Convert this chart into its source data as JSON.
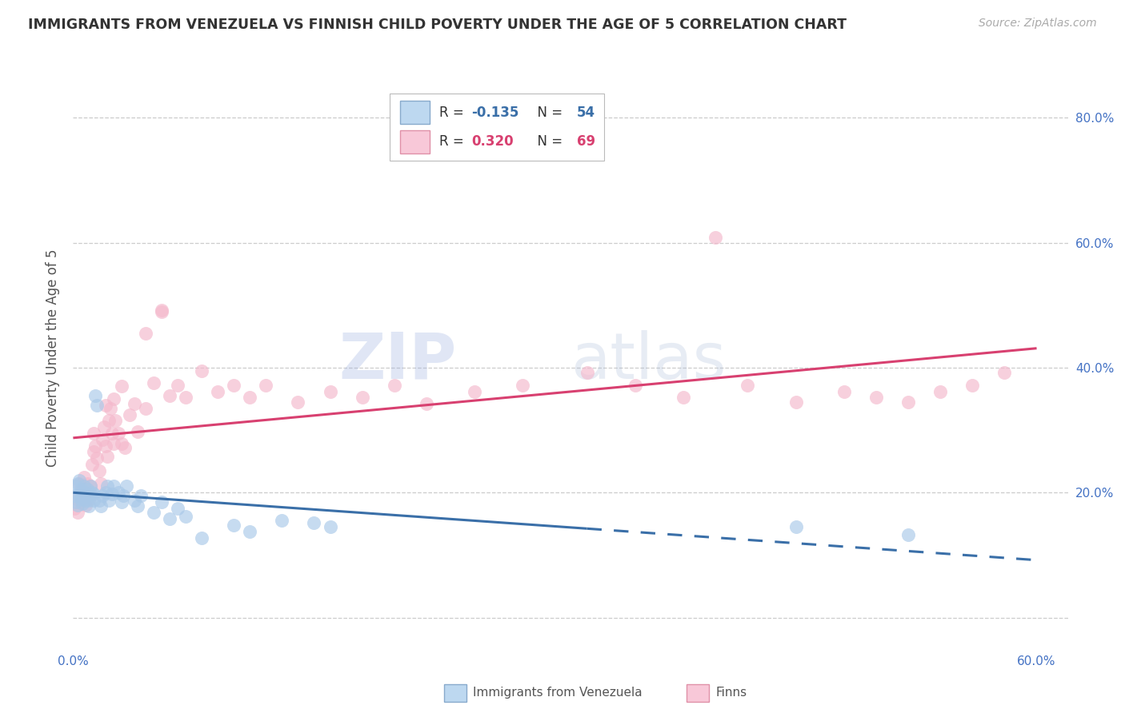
{
  "title": "IMMIGRANTS FROM VENEZUELA VS FINNISH CHILD POVERTY UNDER THE AGE OF 5 CORRELATION CHART",
  "source": "Source: ZipAtlas.com",
  "ylabel": "Child Poverty Under the Age of 5",
  "xlim": [
    0.0,
    0.62
  ],
  "ylim": [
    -0.05,
    0.88
  ],
  "y_ticks": [
    0.0,
    0.2,
    0.4,
    0.6,
    0.8
  ],
  "y_tick_labels": [
    "",
    "20.0%",
    "40.0%",
    "60.0%",
    "80.0%"
  ],
  "x_left_label": "0.0%",
  "x_right_label": "60.0%",
  "color_blue": "#A8C8E8",
  "color_blue_line": "#3A6FA8",
  "color_pink": "#F4B8CC",
  "color_pink_line": "#D84070",
  "watermark_zip_color": "#B8CCE0",
  "watermark_atlas_color": "#C8D8E8",
  "series1_x": [
    0.001,
    0.002,
    0.002,
    0.003,
    0.003,
    0.004,
    0.004,
    0.005,
    0.005,
    0.006,
    0.006,
    0.007,
    0.007,
    0.008,
    0.008,
    0.009,
    0.009,
    0.01,
    0.01,
    0.011,
    0.011,
    0.012,
    0.013,
    0.013,
    0.014,
    0.015,
    0.016,
    0.017,
    0.018,
    0.02,
    0.021,
    0.022,
    0.024,
    0.025,
    0.028,
    0.03,
    0.031,
    0.033,
    0.038,
    0.04,
    0.042,
    0.05,
    0.055,
    0.06,
    0.065,
    0.07,
    0.08,
    0.1,
    0.11,
    0.13,
    0.15,
    0.16,
    0.45,
    0.52
  ],
  "series1_y": [
    0.195,
    0.185,
    0.21,
    0.18,
    0.215,
    0.195,
    0.22,
    0.19,
    0.205,
    0.195,
    0.182,
    0.2,
    0.21,
    0.188,
    0.198,
    0.205,
    0.198,
    0.188,
    0.178,
    0.198,
    0.21,
    0.2,
    0.188,
    0.198,
    0.355,
    0.34,
    0.188,
    0.178,
    0.195,
    0.2,
    0.21,
    0.188,
    0.198,
    0.21,
    0.2,
    0.185,
    0.195,
    0.21,
    0.188,
    0.178,
    0.195,
    0.168,
    0.185,
    0.158,
    0.175,
    0.162,
    0.128,
    0.148,
    0.138,
    0.155,
    0.152,
    0.145,
    0.145,
    0.132
  ],
  "series2_x": [
    0.001,
    0.002,
    0.003,
    0.004,
    0.005,
    0.006,
    0.007,
    0.007,
    0.008,
    0.009,
    0.01,
    0.011,
    0.012,
    0.013,
    0.013,
    0.014,
    0.015,
    0.016,
    0.017,
    0.018,
    0.019,
    0.02,
    0.021,
    0.022,
    0.023,
    0.024,
    0.025,
    0.026,
    0.028,
    0.03,
    0.032,
    0.035,
    0.038,
    0.04,
    0.045,
    0.05,
    0.055,
    0.06,
    0.065,
    0.07,
    0.08,
    0.09,
    0.1,
    0.11,
    0.12,
    0.14,
    0.16,
    0.18,
    0.2,
    0.22,
    0.25,
    0.28,
    0.32,
    0.35,
    0.38,
    0.4,
    0.42,
    0.45,
    0.48,
    0.5,
    0.52,
    0.54,
    0.56,
    0.58,
    0.055,
    0.045,
    0.03,
    0.025,
    0.02
  ],
  "series2_y": [
    0.175,
    0.19,
    0.168,
    0.215,
    0.185,
    0.205,
    0.225,
    0.195,
    0.18,
    0.215,
    0.19,
    0.21,
    0.245,
    0.265,
    0.295,
    0.275,
    0.255,
    0.235,
    0.215,
    0.285,
    0.305,
    0.275,
    0.258,
    0.315,
    0.335,
    0.295,
    0.278,
    0.315,
    0.295,
    0.278,
    0.272,
    0.325,
    0.342,
    0.298,
    0.335,
    0.375,
    0.492,
    0.355,
    0.372,
    0.352,
    0.395,
    0.362,
    0.372,
    0.352,
    0.372,
    0.345,
    0.362,
    0.352,
    0.372,
    0.342,
    0.362,
    0.372,
    0.392,
    0.372,
    0.352,
    0.608,
    0.372,
    0.345,
    0.362,
    0.352,
    0.345,
    0.362,
    0.372,
    0.392,
    0.49,
    0.455,
    0.37,
    0.35,
    0.34
  ]
}
